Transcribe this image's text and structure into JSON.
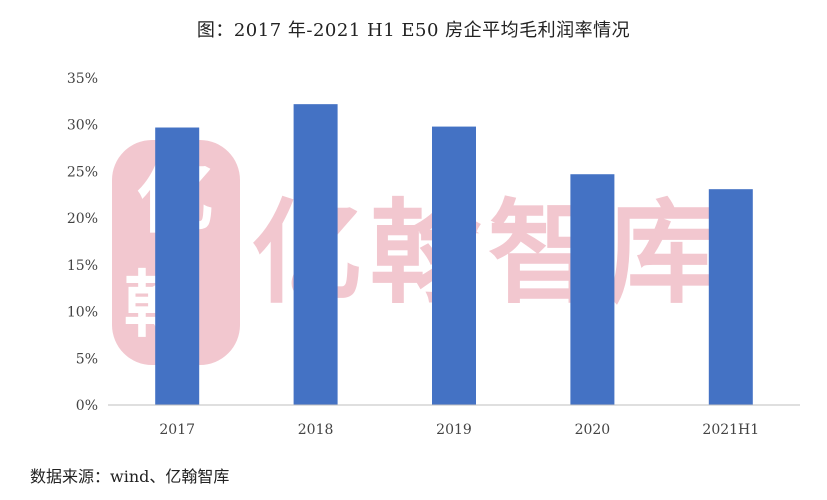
{
  "title": "图：2017 年-2021 H1 E50 房企平均毛利润率情况",
  "source": "数据来源：wind、亿翰智库",
  "watermark": {
    "text": "亿翰智库",
    "logo_char": "亿",
    "logo_char2": "翰",
    "color": "#f2c7cf"
  },
  "colors": {
    "bar": "#4472c4",
    "axis": "#bfbfbf"
  },
  "chart_data": {
    "type": "bar",
    "title": "图：2017 年-2021 H1 E50 房企平均毛利润率情况",
    "categories": [
      "2017",
      "2018",
      "2019",
      "2020",
      "2021H1"
    ],
    "values": [
      29.7,
      32.2,
      29.8,
      24.7,
      23.1
    ],
    "unit": "%",
    "ylim": [
      0,
      35
    ],
    "yticks": [
      0,
      5,
      10,
      15,
      20,
      25,
      30,
      35
    ],
    "ytick_labels": [
      "0%",
      "5%",
      "10%",
      "15%",
      "20%",
      "25%",
      "30%",
      "35%"
    ],
    "xlabel": "",
    "ylabel": "",
    "grid": false,
    "legend": "none"
  }
}
